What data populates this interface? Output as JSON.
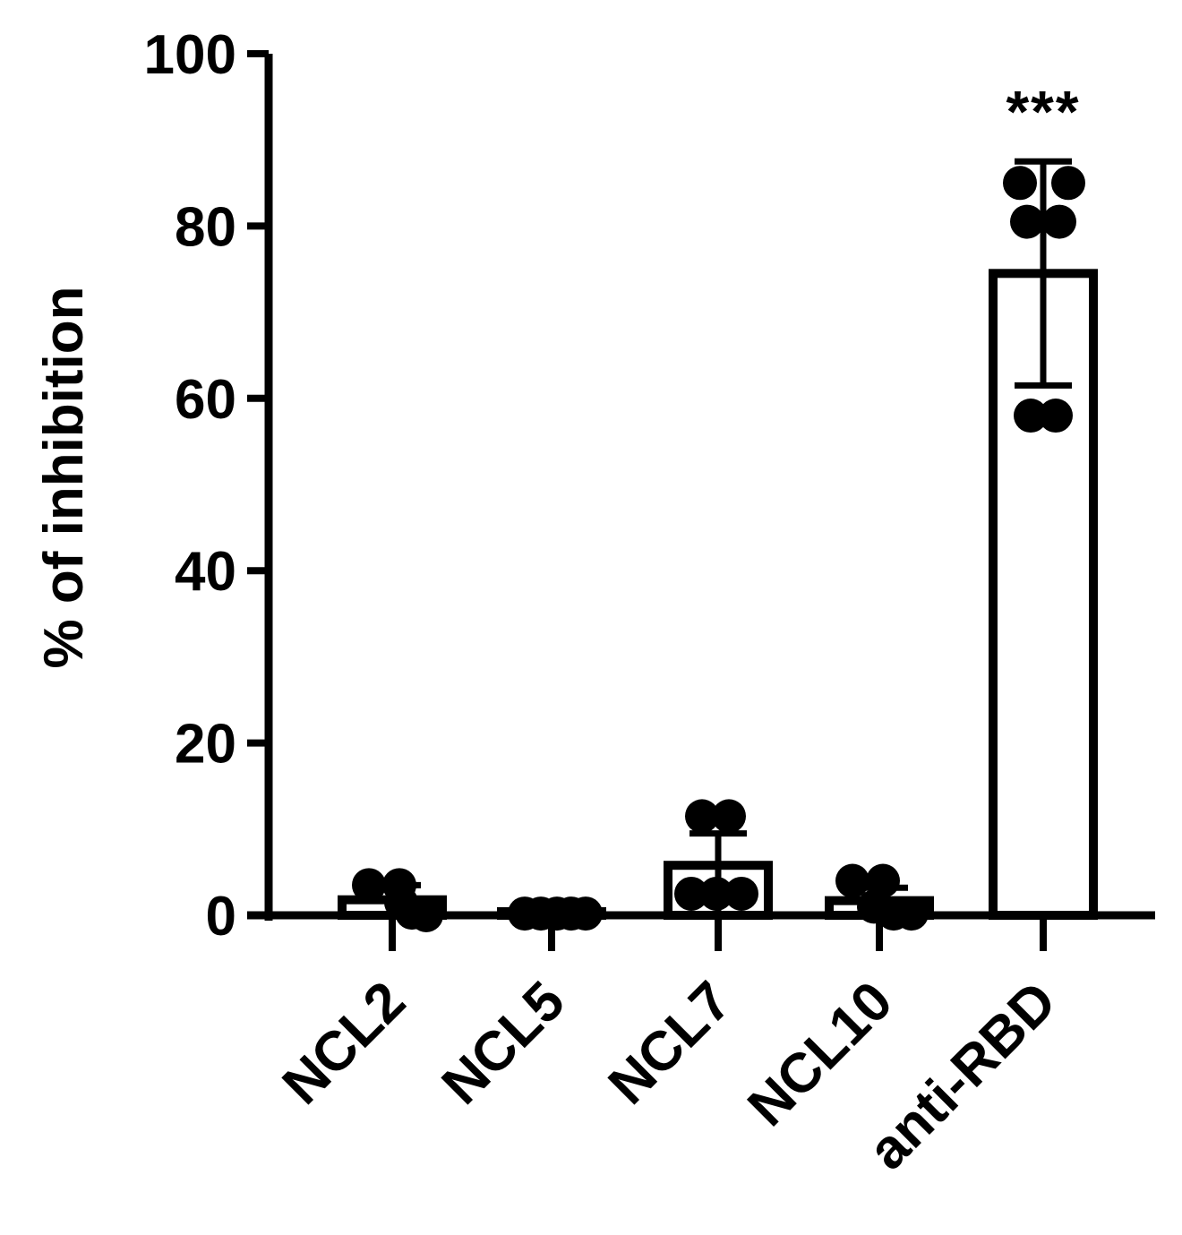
{
  "chart_data": {
    "type": "bar",
    "title": "",
    "xlabel": "",
    "ylabel": "% of inhibition",
    "ylim": [
      0,
      100
    ],
    "yticks": [
      0,
      20,
      40,
      60,
      80,
      100
    ],
    "categories": [
      "NCL2",
      "NCL5",
      "NCL7",
      "NCL10",
      "anti-RBD"
    ],
    "values": [
      1.8,
      0.2,
      5.8,
      1.7,
      74.5
    ],
    "error_low": [
      0,
      0,
      0,
      0,
      61.5
    ],
    "error_high": [
      3.5,
      0.6,
      9.5,
      3.2,
      87.5
    ],
    "points": [
      [
        3.5,
        3.5,
        1.5,
        0.3,
        0.0
      ],
      [
        0.2,
        0.2,
        0.2,
        0.2,
        0.2
      ],
      [
        11.5,
        11.5,
        2.5,
        2.5,
        2.5
      ],
      [
        4.0,
        4.0,
        1.0,
        0.2,
        0.2
      ],
      [
        85,
        85,
        80.5,
        80.5,
        58,
        58
      ]
    ],
    "annotations": [
      {
        "category": "anti-RBD",
        "text": "***",
        "y": 94
      }
    ],
    "grid": false,
    "legend": "none",
    "colors": {
      "bar_fill": "#ffffff",
      "stroke": "#000000",
      "point": "#000000"
    }
  }
}
